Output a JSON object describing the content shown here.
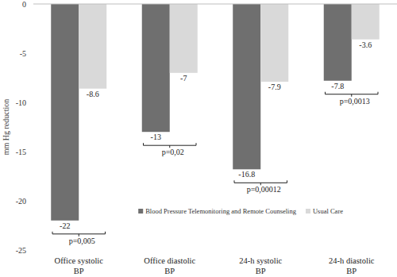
{
  "chart_data": {
    "type": "bar",
    "y_label": "mm Hg reduction",
    "categories": [
      "Office systolic BP",
      "Office diastolic BP",
      "24-h systolic BP",
      "24-h diastolic BP"
    ],
    "series": [
      {
        "name": "Blood Pressure Telemonitoring and Remote Counseling",
        "color": "#6f6f6f",
        "values": [
          -22,
          -13,
          -16.8,
          -7.8
        ]
      },
      {
        "name": "Usual Care",
        "color": "#d9d9d9",
        "values": [
          -8.6,
          -7,
          -7.9,
          -3.6
        ]
      }
    ],
    "annotations": [
      "p=0,005",
      "p=0,02",
      "p=0,00012",
      "p=0,0013"
    ],
    "ylim": [
      -25,
      0
    ],
    "yticks": [
      0,
      -5,
      -10,
      -15,
      -20,
      -25
    ],
    "grid": false,
    "legend": "bottom-right",
    "data_labels": true
  }
}
